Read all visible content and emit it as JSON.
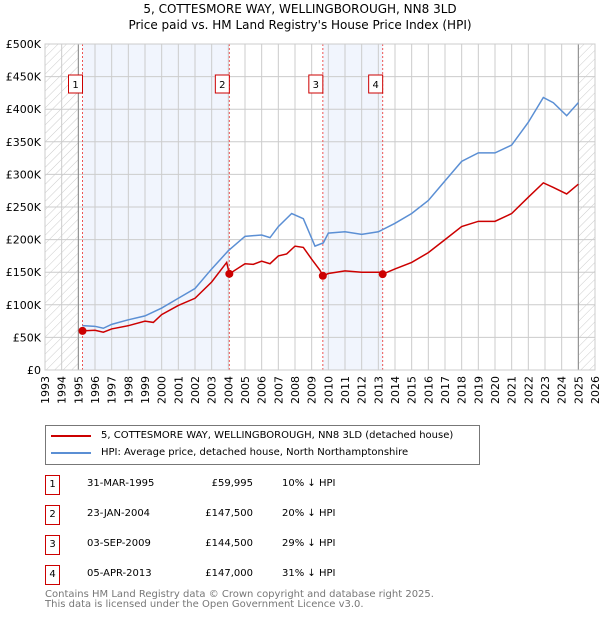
{
  "chart_data": {
    "type": "line",
    "title": "5, COTTESMORE WAY, WELLINGBOROUGH, NN8 3LD",
    "subtitle": "Price paid vs. HM Land Registry's House Price Index (HPI)",
    "xlim": [
      1993,
      2026
    ],
    "ylim": [
      0,
      500000
    ],
    "x_ticks": [
      "1993",
      "1994",
      "1995",
      "1996",
      "1997",
      "1998",
      "1999",
      "2000",
      "2001",
      "2002",
      "2003",
      "2004",
      "2005",
      "2006",
      "2007",
      "2008",
      "2009",
      "2010",
      "2011",
      "2012",
      "2013",
      "2014",
      "2015",
      "2016",
      "2017",
      "2018",
      "2019",
      "2020",
      "2021",
      "2022",
      "2023",
      "2024",
      "2025",
      "2026"
    ],
    "y_ticks": [
      {
        "v": 0,
        "l": "£0"
      },
      {
        "v": 50000,
        "l": "£50K"
      },
      {
        "v": 100000,
        "l": "£100K"
      },
      {
        "v": 150000,
        "l": "£150K"
      },
      {
        "v": 200000,
        "l": "£200K"
      },
      {
        "v": 250000,
        "l": "£250K"
      },
      {
        "v": 300000,
        "l": "£300K"
      },
      {
        "v": 350000,
        "l": "£350K"
      },
      {
        "v": 400000,
        "l": "£400K"
      },
      {
        "v": 450000,
        "l": "£450K"
      },
      {
        "v": 500000,
        "l": "£500K"
      }
    ],
    "grid": true,
    "data_range": [
      1995,
      2025
    ],
    "series": [
      {
        "name": "5, COTTESMORE WAY, WELLINGBOROUGH, NN8 3LD (detached house)",
        "color": "#cc0000",
        "x": [
          1995.25,
          1996,
          1996.5,
          1997,
          1998,
          1999,
          1999.5,
          2000,
          2001,
          2002,
          2003,
          2003.9,
          2004.06,
          2005,
          2005.5,
          2006,
          2006.5,
          2007,
          2007.5,
          2008,
          2008.5,
          2009,
          2009.5,
          2009.67,
          2010,
          2011,
          2012,
          2013.2,
          2013.26,
          2014,
          2015,
          2016,
          2017,
          2018,
          2019,
          2020,
          2021,
          2022,
          2022.9,
          2023.5,
          2024.3,
          2025
        ],
        "y": [
          59995,
          61000,
          58000,
          63000,
          68000,
          75000,
          73000,
          85000,
          99000,
          110000,
          135000,
          165000,
          147500,
          163000,
          162000,
          167000,
          163000,
          175000,
          178000,
          190000,
          188000,
          170000,
          153000,
          144500,
          148000,
          152000,
          150000,
          150000,
          147000,
          155000,
          165000,
          180000,
          200000,
          220000,
          228000,
          228000,
          240000,
          265000,
          287000,
          280000,
          270000,
          285000
        ]
      },
      {
        "name": "HPI: Average price, detached house, North Northamptonshire",
        "color": "#5b8fd4",
        "x": [
          1995.25,
          1996,
          1996.5,
          1997,
          1998,
          1999,
          2000,
          2001,
          2002,
          2003,
          2004,
          2005,
          2006,
          2006.5,
          2007,
          2007.8,
          2008.5,
          2009.2,
          2009.7,
          2010,
          2011,
          2012,
          2013,
          2014,
          2015,
          2016,
          2017,
          2018,
          2019,
          2020,
          2021,
          2022,
          2022.9,
          2023.5,
          2024.3,
          2025
        ],
        "y": [
          68000,
          67000,
          64000,
          70000,
          77000,
          83000,
          95000,
          110000,
          125000,
          155000,
          183000,
          205000,
          207000,
          203000,
          220000,
          240000,
          232000,
          190000,
          195000,
          210000,
          212000,
          208000,
          212000,
          225000,
          240000,
          260000,
          290000,
          320000,
          333000,
          333000,
          345000,
          380000,
          418000,
          410000,
          390000,
          410000
        ]
      }
    ],
    "sales": [
      {
        "n": "1",
        "x": 1995.25,
        "date": "31-MAR-1995",
        "price": "£59,995",
        "price_value": 59995,
        "hpi": "10% ↓ HPI"
      },
      {
        "n": "2",
        "x": 2004.06,
        "date": "23-JAN-2004",
        "price": "£147,500",
        "price_value": 147500,
        "hpi": "20% ↓ HPI"
      },
      {
        "n": "3",
        "x": 2009.67,
        "date": "03-SEP-2009",
        "price": "£144,500",
        "price_value": 144500,
        "hpi": "29% ↓ HPI"
      },
      {
        "n": "4",
        "x": 2013.26,
        "date": "05-APR-2013",
        "price": "£147,000",
        "price_value": 147000,
        "hpi": "31% ↓ HPI"
      }
    ],
    "legend": [
      "5, COTTESMORE WAY, WELLINGBOROUGH, NN8 3LD (detached house)",
      "HPI: Average price, detached house, North Northamptonshire"
    ],
    "footer": [
      "Contains HM Land Registry data © Crown copyright and database right 2025.",
      "This data is licensed under the Open Government Licence v3.0."
    ]
  }
}
